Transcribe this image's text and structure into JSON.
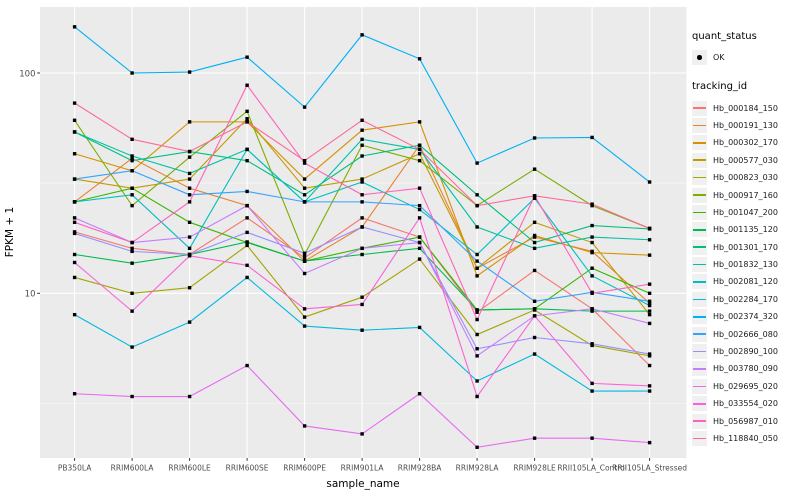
{
  "chart_data": {
    "type": "line",
    "title": "",
    "xlabel": "sample_name",
    "ylabel": "FPKM + 1",
    "y_scale": "log10",
    "ylim": [
      1.8,
      200
    ],
    "y_major_ticks": [
      100,
      10
    ],
    "y_tick_labels": [
      "100",
      "10"
    ],
    "y_minor_gridlines": [
      31.623,
      3.1623
    ],
    "grid": true,
    "legend_position": "right",
    "legend_quant_title": "quant_status",
    "legend_quant_items": [
      {
        "label": "OK"
      }
    ],
    "legend_tracking_title": "tracking_id",
    "categories": [
      "PB350LA",
      "RRIM600LA",
      "RRIM600LE",
      "RRIM600SE",
      "RRIM600PE",
      "RRIM901LA",
      "RRIM928BA",
      "RRIM928LA",
      "RRIM928LE",
      "RRII105LA_Control",
      "RRII105LA_Stressed"
    ],
    "series": [
      {
        "name": "Hb_000184_150",
        "color": "#F8766D",
        "values": [
          19,
          16,
          15,
          22,
          14.5,
          22,
          18,
          8.2,
          12.7,
          8.5,
          4.7
        ]
      },
      {
        "name": "Hb_000191_130",
        "color": "#EA8331",
        "values": [
          26,
          41,
          30,
          25,
          14,
          20,
          47,
          13,
          18,
          15.5,
          9
        ]
      },
      {
        "name": "Hb_000302_170",
        "color": "#D89000",
        "values": [
          43,
          36,
          60,
          60,
          33,
          55,
          60,
          12,
          18.3,
          15.3,
          14.9
        ]
      },
      {
        "name": "Hb_000577_030",
        "color": "#C49A00",
        "values": [
          33,
          30,
          33,
          62,
          30,
          33,
          43,
          13,
          21,
          17,
          8
        ]
      },
      {
        "name": "Hb_000823_030",
        "color": "#A3A500",
        "values": [
          11.8,
          10,
          10.6,
          16.5,
          7.8,
          9.6,
          14.3,
          6.5,
          8.4,
          5.8,
          5.2
        ]
      },
      {
        "name": "Hb_000917_160",
        "color": "#7CAE00",
        "values": [
          61,
          25,
          41.5,
          67,
          15,
          47,
          40,
          25,
          36.6,
          25,
          19.7
        ]
      },
      {
        "name": "Hb_001047_200",
        "color": "#39B600",
        "values": [
          26,
          30,
          21,
          17,
          14,
          16,
          18,
          8.4,
          8.5,
          13,
          10
        ]
      },
      {
        "name": "Hb_001135_120",
        "color": "#00BB4E",
        "values": [
          15,
          13.7,
          15,
          17.1,
          14,
          15,
          16,
          8.4,
          8.5,
          8.3,
          8.3
        ]
      },
      {
        "name": "Hb_001301_170",
        "color": "#00BF7D",
        "values": [
          54,
          40,
          44,
          40,
          28,
          42,
          47,
          28,
          17,
          20.3,
          19.6
        ]
      },
      {
        "name": "Hb_001832_130",
        "color": "#00C1A3",
        "values": [
          54,
          42,
          35,
          45,
          26,
          50,
          45,
          20,
          16,
          18,
          17.5
        ]
      },
      {
        "name": "Hb_002081_120",
        "color": "#00BFC4",
        "values": [
          26,
          28,
          16,
          45,
          26,
          32,
          24,
          15,
          27,
          12,
          8.8
        ]
      },
      {
        "name": "Hb_002284_170",
        "color": "#00BAE0",
        "values": [
          8,
          5.7,
          7.4,
          11.8,
          7.1,
          6.8,
          7,
          4,
          5.3,
          3.6,
          3.6
        ]
      },
      {
        "name": "Hb_002374_320",
        "color": "#00B0F6",
        "values": [
          162,
          100,
          101,
          118,
          70,
          149,
          116,
          39,
          50.7,
          51,
          32
        ]
      },
      {
        "name": "Hb_002666_080",
        "color": "#35A2FF",
        "values": [
          33,
          36,
          28,
          29,
          26,
          26,
          25,
          14,
          9.2,
          10.1,
          9.2
        ]
      },
      {
        "name": "Hb_002890_100",
        "color": "#9590FF",
        "values": [
          18.7,
          15.5,
          15,
          18.9,
          15.2,
          20,
          17,
          5.6,
          6.3,
          5.9,
          5.3
        ]
      },
      {
        "name": "Hb_003780_090",
        "color": "#C77CFF",
        "values": [
          22,
          17,
          18,
          25,
          12.3,
          16,
          17,
          5.2,
          7.9,
          8.5,
          7.3
        ]
      },
      {
        "name": "Hb_029695_020",
        "color": "#E76BF3",
        "values": [
          3.5,
          3.4,
          3.4,
          4.7,
          2.5,
          2.3,
          3.5,
          2,
          2.2,
          2.2,
          2.1
        ]
      },
      {
        "name": "Hb_033554_020",
        "color": "#FA62DB",
        "values": [
          13.8,
          8.3,
          14.8,
          13.4,
          8.5,
          8.9,
          22,
          3.4,
          7.9,
          3.9,
          3.8
        ]
      },
      {
        "name": "Hb_056987_010",
        "color": "#FF62BC",
        "values": [
          21,
          17,
          26,
          88,
          39,
          28,
          30,
          7.6,
          27.7,
          10,
          11
        ]
      },
      {
        "name": "Hb_118840_050",
        "color": "#FF6A98",
        "values": [
          73,
          50,
          44,
          60,
          40,
          61,
          45,
          25,
          27.7,
          25.4,
          19.7
        ]
      }
    ]
  },
  "style_colors": {
    "panel_bg": "#EBEBEB",
    "grid_major": "#FFFFFF",
    "grid_minor": "#F7F7F7",
    "legend_key_bg": "#F0F0F0",
    "axis_text": "#4D4D4D",
    "tick_mark": "#333333",
    "point": "#000000"
  }
}
